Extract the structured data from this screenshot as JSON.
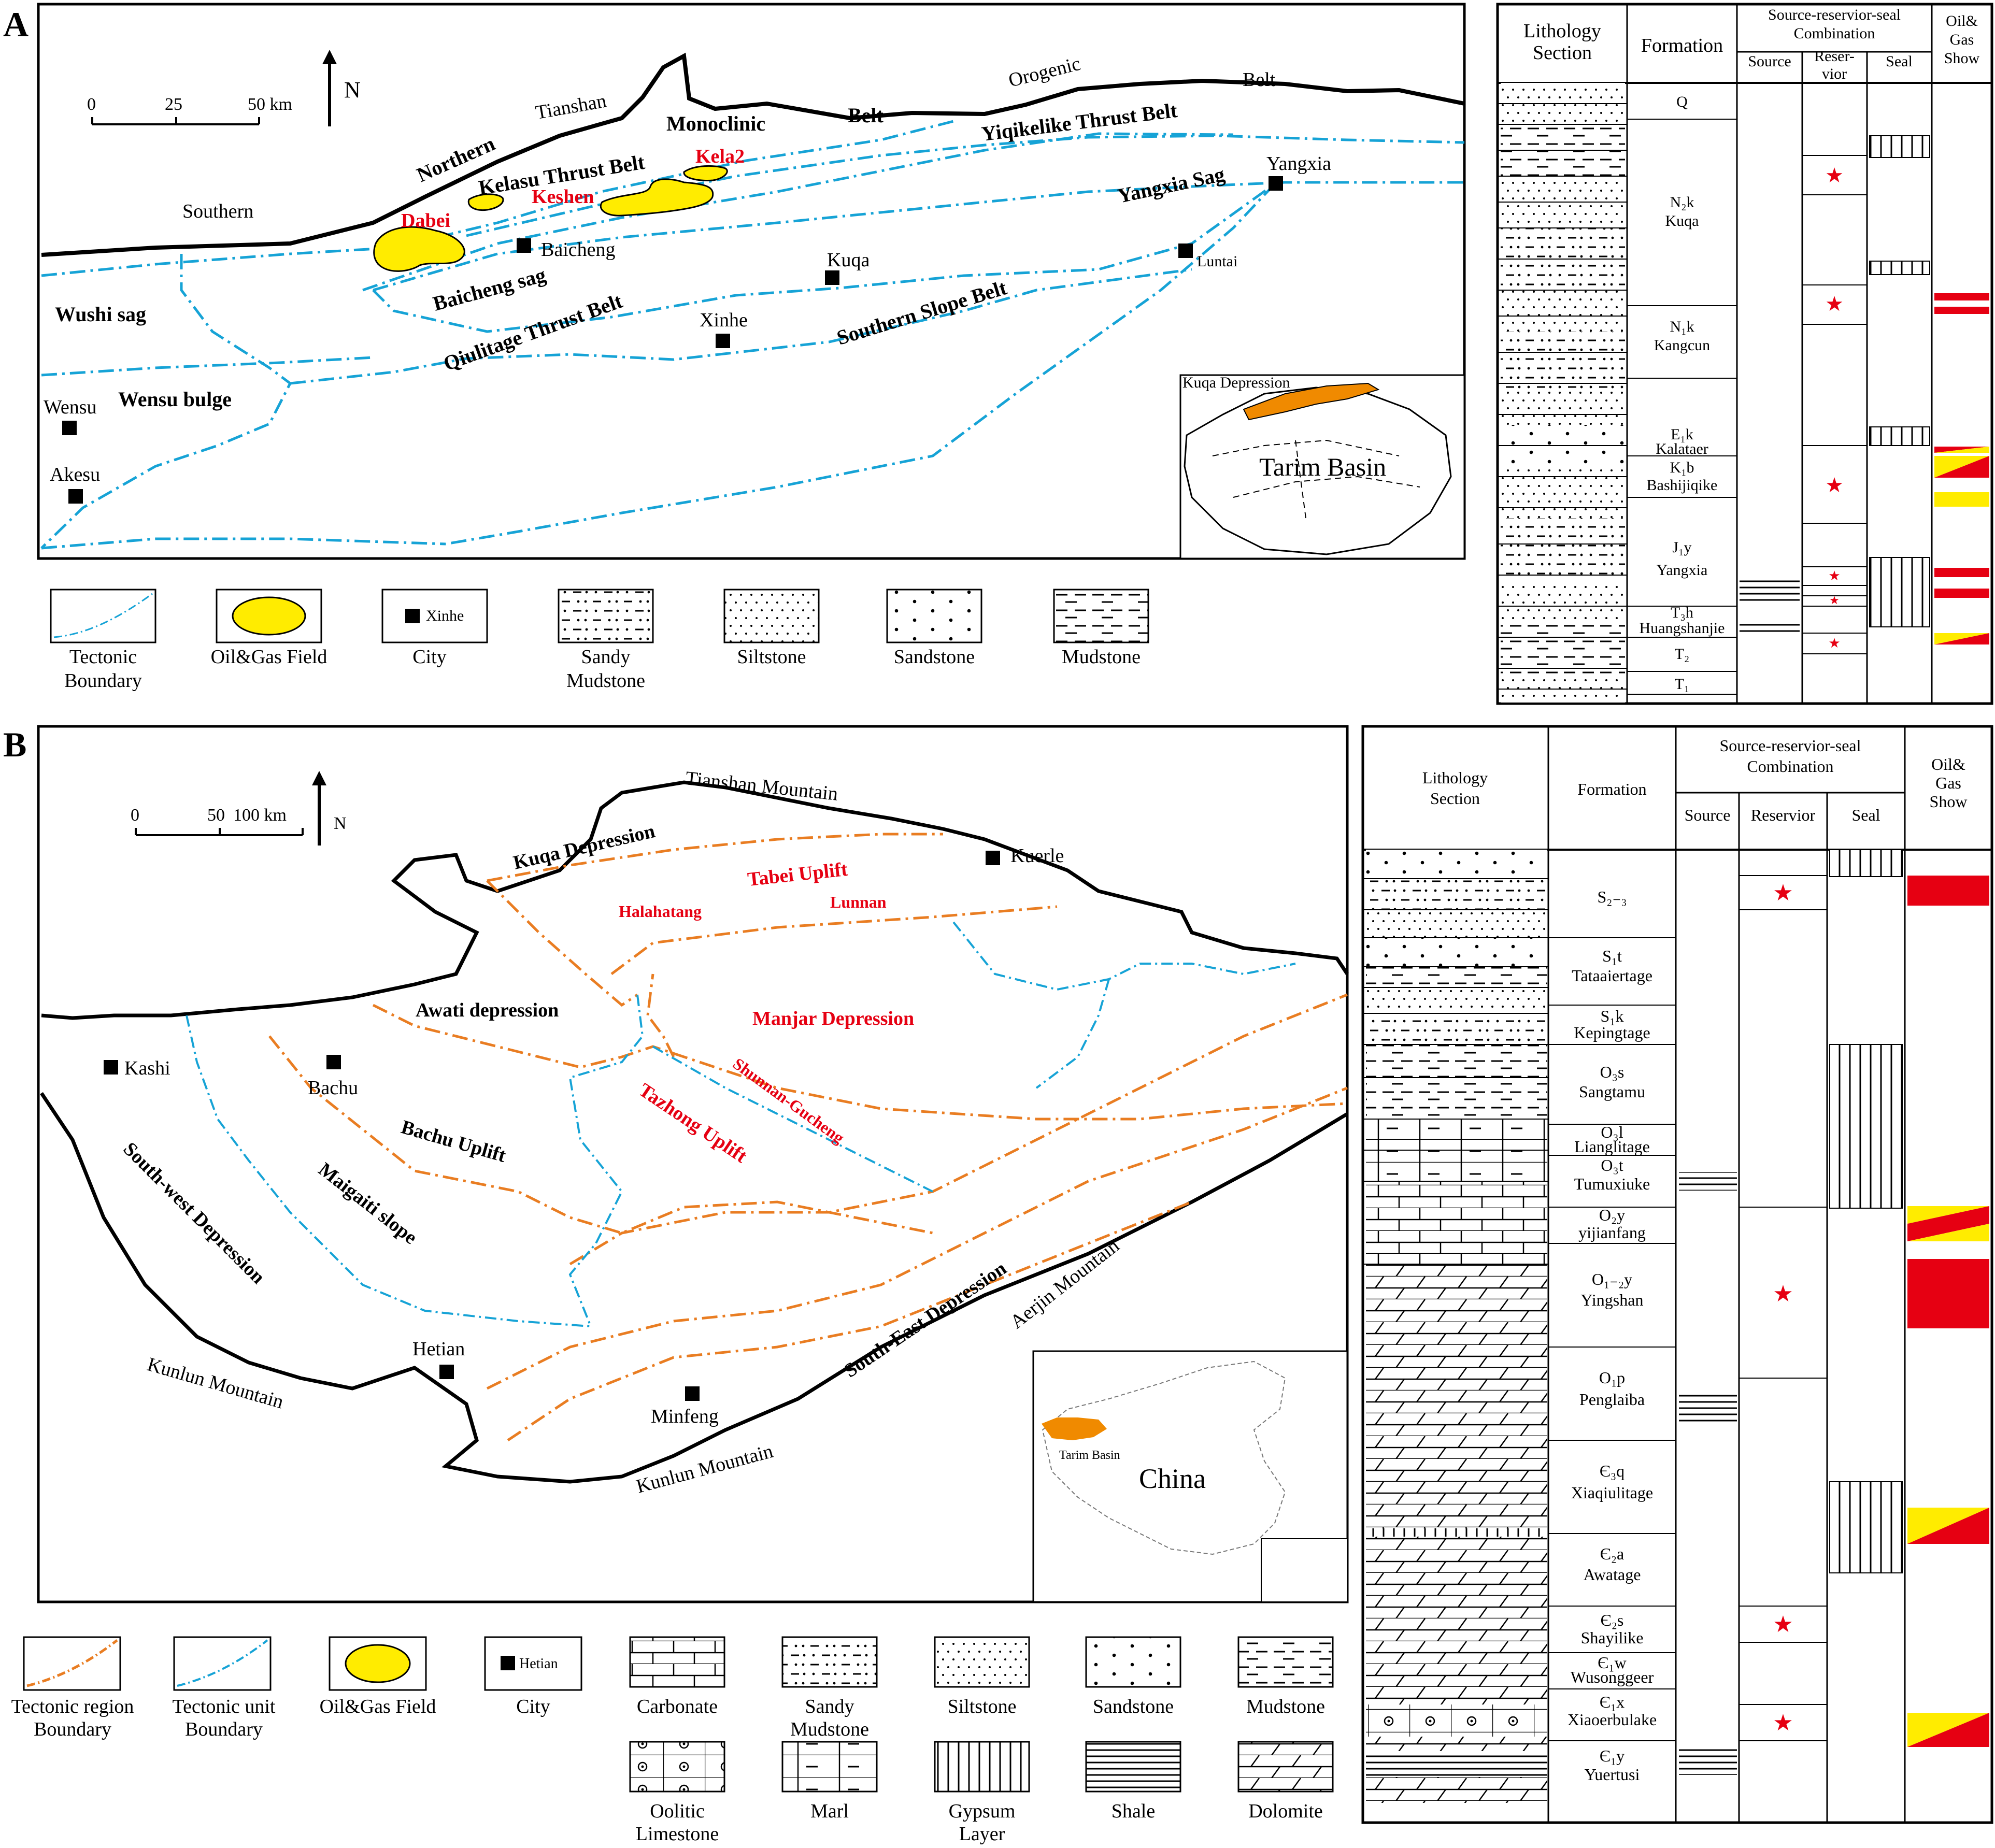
{
  "panels": {
    "a": "A",
    "b": "B"
  },
  "map_a": {
    "scale": {
      "zero": "0",
      "mid": "25",
      "end": "50 km"
    },
    "north": "N",
    "places": {
      "tianshan": "Tianshan",
      "orogenic": "Orogenic",
      "belt_top": "Belt",
      "southern": "Southern",
      "northern": "Northern",
      "monoclinic": "Monoclinic",
      "belt": "Belt",
      "kelasu": "Kelasu Thrust Belt",
      "yiqikelike": "Yiqikelike Thrust Belt",
      "yangxia_sag": "Yangxia Sag",
      "baicheng_sag": "Baicheng sag",
      "qiulitage": "Qiulitage Thrust Belt",
      "southern_slope": "Southern Slope Belt",
      "wushi": "Wushi sag",
      "wensu_bulge": "Wensu bulge"
    },
    "fields": {
      "dabei": "Dabei",
      "keshen": "Keshen",
      "kela2": "Kela2"
    },
    "cities": {
      "baicheng": "Baicheng",
      "kuqa": "Kuqa",
      "xinhe": "Xinhe",
      "yangxia": "Yangxia",
      "luntai": "Luntai",
      "wensu": "Wensu",
      "akesu": "Akesu"
    },
    "inset": {
      "label": "Kuqa Depression",
      "basin": "Tarim Basin"
    }
  },
  "legend_a": [
    "Tectonic Boundary",
    "Oil&Gas Field",
    "City",
    "Sandy Mudstone",
    "Siltstone",
    "Sandstone",
    "Mudstone"
  ],
  "legend_a_city": "Xinhe",
  "column_a": {
    "headers": {
      "lith": "Lithology Section",
      "formation": "Formation",
      "combo": "Source-reservior-seal Combination",
      "source": "Source",
      "reservoir": "Reser- vior",
      "seal": "Seal",
      "oil": "Oil& Gas Show"
    },
    "formations": [
      {
        "code": "Q",
        "name": ""
      },
      {
        "code": "N₂k",
        "name": "Kuqa"
      },
      {
        "code": "N₁k",
        "name": "Kangcun"
      },
      {
        "code": "E₁k",
        "name": "Kalataer"
      },
      {
        "code": "K₁b",
        "name": "Bashijiqike"
      },
      {
        "code": "J₁y",
        "name": "Yangxia"
      },
      {
        "code": "T₃h",
        "name": "Huangshanjie"
      },
      {
        "code": "T₂",
        "name": ""
      },
      {
        "code": "T₁",
        "name": ""
      }
    ]
  },
  "map_b": {
    "scale": {
      "zero": "0",
      "mid": "50",
      "end": "100 km"
    },
    "north": "N",
    "labels": {
      "tianshan": "Tianshan Mountain",
      "kuqa_dep": "Kuqa Depression",
      "tabei": "Tabei Uplift",
      "halahatang": "Halahatang",
      "lunnan": "Lunnan",
      "awati": "Awati depression",
      "manjar": "Manjar Depression",
      "shunnan": "Shunnan-Gucheng",
      "tazhong": "Tazhong Uplift",
      "bachu_uplift": "Bachu Uplift",
      "maigaiti": "Maigaiti slope",
      "southwest": "South-west Depression",
      "southeast": "South-East Depression",
      "kunlun1": "Kunlun Mountain",
      "kunlun2": "Kunlun Mountain",
      "aerjin": "Aerjin Mountain"
    },
    "cities": {
      "kuerle": "Kuerle",
      "kashi": "Kashi",
      "bachu": "Bachu",
      "hetian": "Hetian",
      "minfeng": "Minfeng"
    },
    "inset": {
      "basin": "Tarim Basin",
      "country": "China"
    }
  },
  "legend_b": [
    "Tectonic region Boundary",
    "Tectonic unit Boundary",
    "Oil&Gas Field",
    "City",
    "Carbonate",
    "Sandy Mudstone",
    "Siltstone",
    "Sandstone",
    "Mudstone",
    "Oolitic Limestone",
    "Marl",
    "Gypsum Layer",
    "Shale",
    "Dolomite"
  ],
  "legend_b_city": "Hetian",
  "column_b": {
    "headers": {
      "lith": "Lithology Section",
      "formation": "Formation",
      "combo": "Source-reservior-seal Combination",
      "source": "Source",
      "reservoir": "Reservior",
      "seal": "Seal",
      "oil": "Oil& Gas Show"
    },
    "formations": [
      {
        "code": "S₂₋₃",
        "name": ""
      },
      {
        "code": "S₁t",
        "name": "Tataaiertage"
      },
      {
        "code": "S₁k",
        "name": "Kepingtage"
      },
      {
        "code": "O₃s",
        "name": "Sangtamu"
      },
      {
        "code": "O₃l",
        "name": "Lianglitage"
      },
      {
        "code": "O₃t",
        "name": "Tumuxiuke"
      },
      {
        "code": "O₂y",
        "name": "yijianfang"
      },
      {
        "code": "O₁₋₂y",
        "name": "Yingshan"
      },
      {
        "code": "O₁p",
        "name": "Penglaiba"
      },
      {
        "code": "Є₃q",
        "name": "Xiaqiulitage"
      },
      {
        "code": "Є₂a",
        "name": "Awatage"
      },
      {
        "code": "Є₂s",
        "name": "Shayilike"
      },
      {
        "code": "Є₁w",
        "name": "Wusonggeer"
      },
      {
        "code": "Є₁x",
        "name": "Xiaoerbulake"
      },
      {
        "code": "Є₁y",
        "name": "Yuertusi"
      }
    ]
  },
  "colors": {
    "field": "#ffec00",
    "region": "#e97d22",
    "unit": "#16a3d6",
    "red": "#e60012",
    "label_red": "#e60012",
    "inset_orange": "#f08a00"
  }
}
